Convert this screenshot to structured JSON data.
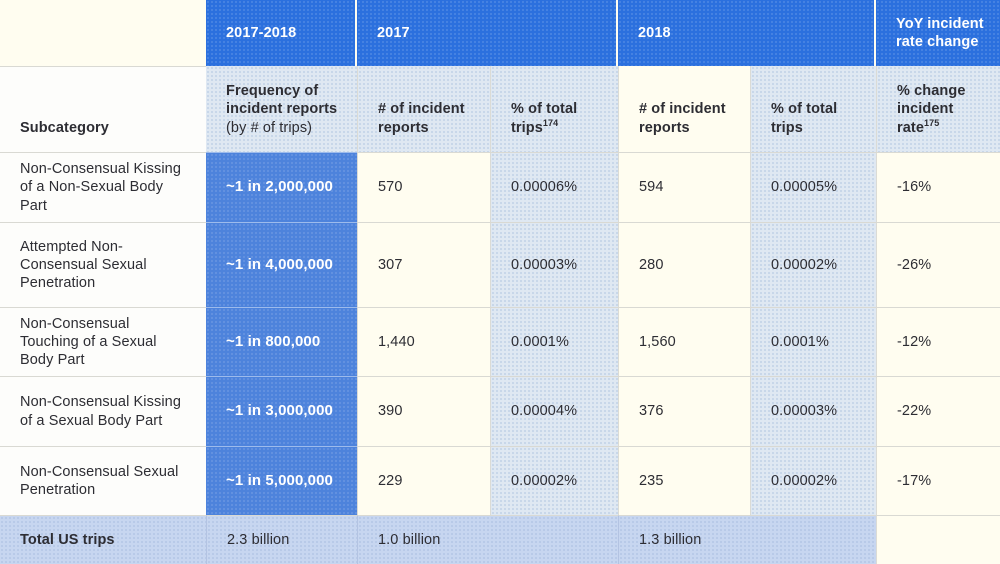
{
  "title_row": {
    "col_2017_2018": "2017-2018",
    "col_2017": "2017",
    "col_2018": "2018",
    "col_yoy": "YoY incident rate change"
  },
  "header_row": {
    "subcategory": "Subcategory",
    "frequency_main": "Frequency of incident reports",
    "frequency_note": "(by # of trips)",
    "reports_2017": "# of incident reports",
    "pct_trips_2017": "% of total trips",
    "pct_trips_2017_footnote": "174",
    "reports_2018": "# of incident reports",
    "pct_trips_2018": "% of total trips",
    "yoy_label": "% change incident rate",
    "yoy_footnote": "175"
  },
  "rows": [
    {
      "subcategory": "Non-Consensual Kissing of a Non-Sexual Body Part",
      "frequency": "~1 in 2,000,000",
      "reports_2017": "570",
      "pct_2017": "0.00006%",
      "reports_2018": "594",
      "pct_2018": "0.00005%",
      "yoy_change": "-16%"
    },
    {
      "subcategory": "Attempted Non-Consensual Sexual Penetration",
      "frequency": "~1 in 4,000,000",
      "reports_2017": "307",
      "pct_2017": "0.00003%",
      "reports_2018": "280",
      "pct_2018": "0.00002%",
      "yoy_change": "-26%"
    },
    {
      "subcategory": "Non-Consensual Touching of a Sexual Body Part",
      "frequency": "~1 in 800,000",
      "reports_2017": "1,440",
      "pct_2017": "0.0001%",
      "reports_2018": "1,560",
      "pct_2018": "0.0001%",
      "yoy_change": "-12%"
    },
    {
      "subcategory": "Non-Consensual Kissing of a Sexual Body Part",
      "frequency": "~1 in 3,000,000",
      "reports_2017": "390",
      "pct_2017": "0.00004%",
      "reports_2018": "376",
      "pct_2018": "0.00003%",
      "yoy_change": "-22%"
    },
    {
      "subcategory": "Non-Consensual Sexual Penetration",
      "frequency": "~1 in 5,000,000",
      "reports_2017": "229",
      "pct_2017": "0.00002%",
      "reports_2018": "235",
      "pct_2018": "0.00002%",
      "yoy_change": "-17%"
    }
  ],
  "total_row": {
    "label": "Total US trips",
    "total_2017_2018": "2.3 billion",
    "total_2017": "1.0 billion",
    "total_2018": "1.3 billion"
  },
  "colors": {
    "header_blue": "#2B70DE",
    "frequency_blue": "#4D83DC",
    "light_blue": "#DFE8F2",
    "cream": "#FFFDF0",
    "total_periwinkle": "#C7D6F0",
    "grid_line": "#D9D9D3",
    "text_dark": "#2D2D33",
    "text_white": "#FFFFFF"
  }
}
